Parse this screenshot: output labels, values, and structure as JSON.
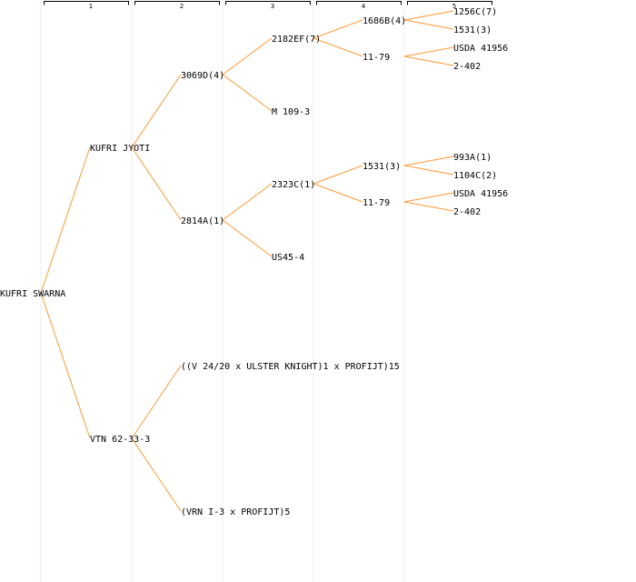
{
  "columns": [
    "1",
    "2",
    "3",
    "4",
    "5"
  ],
  "nodes": {
    "root": "KUFRI SWARNA",
    "kufri_jyoti": "KUFRI JYOTI",
    "vtn": "VTN 62-33-3",
    "n3069d": "3069D(4)",
    "n2814a": "2814A(1)",
    "ulster": "((V 24/20 x ULSTER KNIGHT)1 x PROFIJT)15",
    "vrn": "(VRN I-3 x PROFIJT)5",
    "n2182ef": "2182EF(7)",
    "m109": "M 109-3",
    "n2323c": "2323C(1)",
    "us45": "US45-4",
    "n1686b": "1686B(4)",
    "n11_79_a": "11-79",
    "n1531": "1531(3)",
    "n11_79_b": "11-79",
    "n1256c": "1256C(7)",
    "n1531_a": "1531(3)",
    "usda_a": "USDA 41956",
    "n2402_a": "2-402",
    "n993a": "993A(1)",
    "n1104c": "1104C(2)",
    "usda_b": "USDA 41956",
    "n2402_b": "2-402"
  }
}
